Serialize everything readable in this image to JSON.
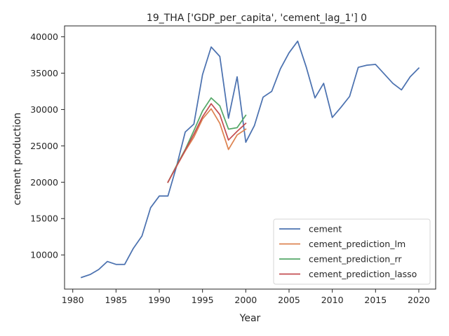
{
  "chart_data": {
    "type": "line",
    "title": "19_THA ['GDP_per_capita', 'cement_lag_1'] 0",
    "xlabel": "Year",
    "ylabel": "cement production",
    "xlim": [
      1979.05,
      2021.95
    ],
    "ylim": [
      5300,
      41500
    ],
    "xticks": [
      1980,
      1985,
      1990,
      1995,
      2000,
      2005,
      2010,
      2015,
      2020
    ],
    "yticks": [
      10000,
      15000,
      20000,
      25000,
      30000,
      35000,
      40000
    ],
    "grid": false,
    "legend_position": "lower-right",
    "series": [
      {
        "name": "cement",
        "color": "#4c72b0",
        "x": [
          1981,
          1982,
          1983,
          1984,
          1985,
          1986,
          1987,
          1988,
          1989,
          1990,
          1991,
          1992,
          1993,
          1994,
          1995,
          1996,
          1997,
          1998,
          1999,
          2000,
          2001,
          2002,
          2003,
          2004,
          2005,
          2006,
          2007,
          2008,
          2009,
          2010,
          2011,
          2012,
          2013,
          2014,
          2015,
          2016,
          2017,
          2018,
          2019,
          2020
        ],
        "values": [
          6900,
          7300,
          8000,
          9100,
          8700,
          8700,
          10900,
          12600,
          16500,
          18100,
          18100,
          22200,
          26900,
          28000,
          34800,
          38600,
          37300,
          28800,
          34500,
          25500,
          27800,
          31700,
          32500,
          35600,
          37800,
          39400,
          35800,
          31600,
          33600,
          28900,
          30300,
          31800,
          35800,
          36100,
          36200,
          34900,
          33600,
          32700,
          34500,
          35700
        ]
      },
      {
        "name": "cement_prediction_lm",
        "color": "#dd8452",
        "x": [
          1991,
          1992,
          1993,
          1994,
          1995,
          1996,
          1997,
          1998,
          1999,
          2000
        ],
        "values": [
          20000,
          22200,
          24300,
          26200,
          28700,
          30100,
          28100,
          24500,
          26500,
          27300
        ]
      },
      {
        "name": "cement_prediction_rr",
        "color": "#55a868",
        "x": [
          1991,
          1992,
          1993,
          1994,
          1995,
          1996,
          1997,
          1998,
          1999,
          2000
        ],
        "values": [
          20000,
          22300,
          24500,
          27100,
          29800,
          31600,
          30500,
          27300,
          27500,
          29200
        ]
      },
      {
        "name": "cement_prediction_lasso",
        "color": "#c44e52",
        "x": [
          1991,
          1992,
          1993,
          1994,
          1995,
          1996,
          1997,
          1998,
          1999,
          2000
        ],
        "values": [
          20000,
          22200,
          24400,
          26600,
          29000,
          30800,
          29300,
          25800,
          27000,
          28100
        ]
      }
    ]
  }
}
